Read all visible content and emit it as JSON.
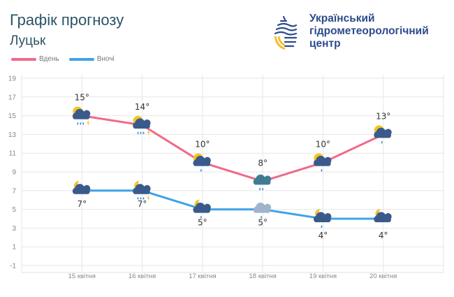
{
  "header": {
    "title": "Графік прогнозу",
    "city": "Луцьк",
    "org_lines": [
      "Український",
      "гідрометеорологічний",
      "центр"
    ]
  },
  "colors": {
    "day": "#ef6a88",
    "night": "#3fa3e6",
    "brand": "#2d4b8c",
    "logo_yellow": "#f2c12e"
  },
  "chart_data": {
    "type": "line",
    "categories": [
      "15 квітня",
      "16 квітня",
      "17 квітня",
      "18 квітня",
      "19 квітня",
      "20 квітня"
    ],
    "series": [
      {
        "name": "Вдень",
        "values": [
          15,
          14,
          10,
          8,
          10,
          13
        ],
        "labels": [
          "15°",
          "14°",
          "10°",
          "8°",
          "10°",
          "13°"
        ],
        "icons": [
          "sun-cloud-rain-thunder",
          "sun-cloud-rain-thunder",
          "sun-cloud-rain",
          "cloud-rain",
          "sun-cloud-rain",
          "sun-cloud-rain"
        ]
      },
      {
        "name": "Вночі",
        "values": [
          7,
          7,
          5,
          5,
          4,
          4
        ],
        "labels": [
          "7°",
          "7°",
          "5°",
          "5°",
          "4°",
          "4°"
        ],
        "icons": [
          "moon-cloud",
          "moon-cloud-rain-thunder",
          "moon-cloud-rain",
          "cloud-light-rain",
          "moon-cloud-rain",
          "moon-cloud"
        ]
      }
    ],
    "yticks": [
      19,
      17,
      15,
      13,
      11,
      9,
      7,
      5,
      3,
      1,
      -1
    ],
    "ylim": [
      -1,
      19
    ],
    "grid": true,
    "legend": "top-left"
  }
}
